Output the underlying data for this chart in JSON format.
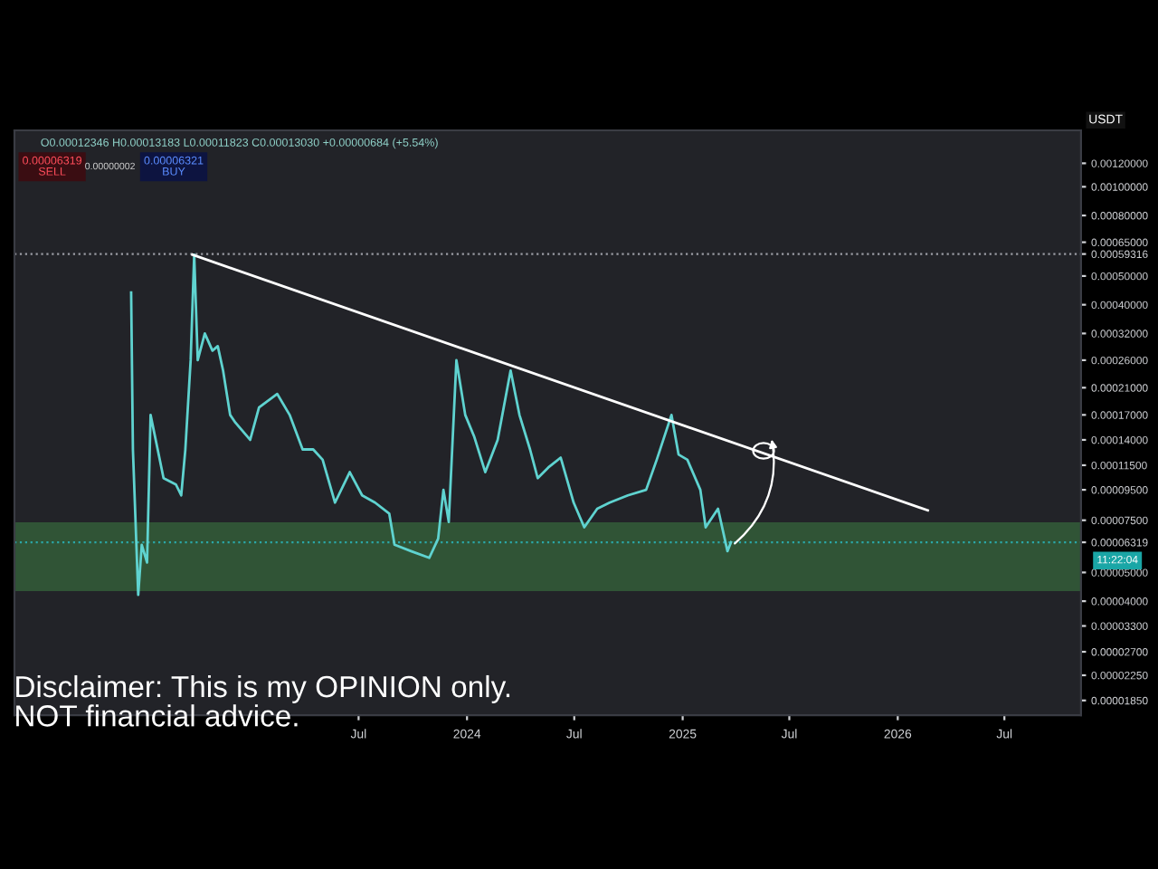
{
  "chart_data": {
    "type": "line",
    "ylabel": "USDT",
    "annotations": [
      "O0.00012346 H0.00013183 L0.00011823 C0.00013030 +0.00000684 (+5.54%)",
      "0.00006319\nSELL",
      "0.00000002",
      "0.00006321\nBUY",
      "11:22:04",
      "Disclaimer: This is my OPINION only.\nNOT financial advice."
    ],
    "series": [
      {
        "color": "#5fd3d0",
        "x": [
          "2022-06-10",
          "2022-06-13",
          "2022-06-22",
          "2022-06-28",
          "2022-07-07",
          "2022-07-13",
          "2022-08-04",
          "2022-08-25",
          "2022-09-03",
          "2022-09-10",
          "2022-09-19",
          "2022-09-25",
          "2022-10-01",
          "2022-10-13",
          "2022-10-26",
          "2022-11-04",
          "2022-11-13",
          "2022-11-25",
          "2022-12-04",
          "2022-12-29",
          "2023-01-13",
          "2023-02-13",
          "2023-03-06",
          "2023-03-28",
          "2023-04-15",
          "2023-05-01",
          "2023-05-22",
          "2023-06-16",
          "2023-07-07",
          "2023-07-29",
          "2023-08-22",
          "2023-08-31",
          "2023-09-28",
          "2023-10-29",
          "2023-11-13",
          "2023-11-22",
          "2023-12-01",
          "2023-12-14",
          "2023-12-29",
          "2024-01-13",
          "2024-02-01",
          "2024-02-22",
          "2024-03-15",
          "2024-03-30",
          "2024-04-17",
          "2024-04-30",
          "2024-05-18",
          "2024-06-08",
          "2024-06-30",
          "2024-07-18",
          "2024-08-09",
          "2024-08-30",
          "2024-09-30",
          "2024-10-31",
          "2024-11-18",
          "2024-12-13",
          "2024-12-25",
          "2025-01-09",
          "2025-01-31",
          "2025-02-09",
          "2025-03-02",
          "2025-03-18",
          "2025-03-24"
        ],
        "values": [
          0.00044,
          0.00013,
          4.2e-05,
          6.2e-05,
          5.4e-05,
          0.00017,
          0.000104,
          9.9e-05,
          9.1e-05,
          0.00013,
          0.00026,
          0.00059,
          0.00026,
          0.00032,
          0.00028,
          0.00029,
          0.00024,
          0.00017,
          0.00016,
          0.00014,
          0.00018,
          0.0002,
          0.00017,
          0.00013,
          0.00013,
          0.00012,
          8.6e-05,
          0.000109,
          9.1e-05,
          8.6e-05,
          7.9e-05,
          6.2e-05,
          5.9e-05,
          5.6e-05,
          6.5e-05,
          9.5e-05,
          7.4e-05,
          0.00026,
          0.00017,
          0.000144,
          0.000109,
          0.00014,
          0.00024,
          0.00017,
          0.00013,
          0.000104,
          0.000113,
          0.000122,
          8.6e-05,
          7.1e-05,
          8.2e-05,
          8.6e-05,
          9.1e-05,
          9.5e-05,
          0.00012,
          0.00017,
          0.000125,
          0.00012,
          9.5e-05,
          7.1e-05,
          8.2e-05,
          5.9e-05,
          6.32e-05
        ]
      },
      {
        "color": "#ffffff",
        "x": [
          "2022-09-22",
          "2026-02-21"
        ],
        "values": [
          0.00059,
          8.1e-05
        ]
      }
    ],
    "log": "y",
    "xlim": [
      "2021-11-24",
      "2026-11-08"
    ],
    "xticks": [
      {
        "value": "2023-07-01",
        "label": "Jul"
      },
      {
        "value": "2024-01-01",
        "label": "2024"
      },
      {
        "value": "2024-07-01",
        "label": "Jul"
      },
      {
        "value": "2025-01-01",
        "label": "2025"
      },
      {
        "value": "2025-07-01",
        "label": "Jul"
      },
      {
        "value": "2026-01-01",
        "label": "2026"
      },
      {
        "value": "2026-07-01",
        "label": "Jul"
      }
    ],
    "ylim": [
      1.65e-05,
      0.00155
    ],
    "yticks": [
      {
        "value": 0.0012,
        "label": "0.00120000"
      },
      {
        "value": 0.001,
        "label": "0.00100000"
      },
      {
        "value": 0.0008,
        "label": "0.00080000"
      },
      {
        "value": 0.00065,
        "label": "0.00065000"
      },
      {
        "value": 0.00059316,
        "label": "0.00059316"
      },
      {
        "value": 0.0005,
        "label": "0.00050000"
      },
      {
        "value": 0.0004,
        "label": "0.00040000"
      },
      {
        "value": 0.00032,
        "label": "0.00032000"
      },
      {
        "value": 0.00026,
        "label": "0.00026000"
      },
      {
        "value": 0.00021,
        "label": "0.00021000"
      },
      {
        "value": 0.00017,
        "label": "0.00017000"
      },
      {
        "value": 0.00014,
        "label": "0.00014000"
      },
      {
        "value": 0.000115,
        "label": "0.00011500"
      },
      {
        "value": 9.5e-05,
        "label": "0.00009500"
      },
      {
        "value": 7.5e-05,
        "label": "0.00007500"
      },
      {
        "value": 6.319e-05,
        "label": "0.00006319"
      },
      {
        "value": 5e-05,
        "label": "0.00005000"
      },
      {
        "value": 4e-05,
        "label": "0.00004000"
      },
      {
        "value": 3.3e-05,
        "label": "0.00003300"
      },
      {
        "value": 2.7e-05,
        "label": "0.00002700"
      },
      {
        "value": 2.25e-05,
        "label": "0.00002250"
      },
      {
        "value": 1.85e-05,
        "label": "0.00001850"
      }
    ],
    "ref_lines": [
      {
        "axis": "y",
        "value": 0.00059316,
        "color": "#9a9ca3",
        "line_style": "dotted"
      },
      {
        "axis": "y",
        "value": 6.319e-05,
        "color": "#2aa7a7",
        "line_style": "dotted"
      }
    ],
    "bands": [
      {
        "axis": "y",
        "from": 4.36e-05,
        "to": 7.33e-05,
        "color": "#4caf50"
      }
    ],
    "grid": false,
    "legend": false,
    "line_style": "solid",
    "marker": "none"
  }
}
